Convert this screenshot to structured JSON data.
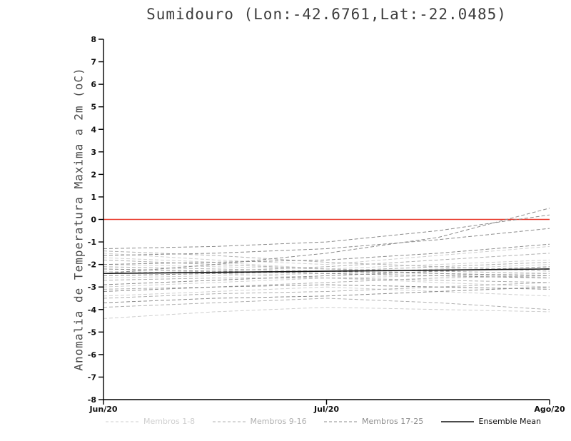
{
  "chart_data": {
    "type": "line",
    "title": "Sumidouro (Lon:-42.6761,Lat:-22.0485)",
    "ylabel": "Anomalia de Temperatura Maxima a 2m (oC)",
    "xlim": [
      0,
      2
    ],
    "ylim": [
      -8,
      8
    ],
    "yticks": [
      -8,
      -7,
      -6,
      -5,
      -4,
      -3,
      -2,
      -1,
      0,
      1,
      2,
      3,
      4,
      5,
      6,
      7,
      8
    ],
    "x_ticks": [
      {
        "pos": 0,
        "label": "Jun/20"
      },
      {
        "pos": 1,
        "label": "Jul/20"
      },
      {
        "pos": 2,
        "label": "Ago/20"
      }
    ],
    "x": [
      0,
      0.5,
      1,
      1.5,
      2
    ],
    "zero_line": {
      "value": 0,
      "color": "#e8392b"
    },
    "grid": false,
    "legend_position": "bottom",
    "groups": [
      {
        "name": "Membros 1-8",
        "color": "#cfcfcf",
        "dashed": true,
        "members": [
          [
            -1.5,
            -1.8,
            -2.0,
            -1.6,
            -1.2
          ],
          [
            -1.7,
            -1.9,
            -2.2,
            -2.4,
            -2.6
          ],
          [
            -2.0,
            -2.1,
            -2.2,
            -2.0,
            -1.8
          ],
          [
            -2.3,
            -2.4,
            -2.6,
            -2.8,
            -3.0
          ],
          [
            -2.6,
            -2.5,
            -2.4,
            -2.2,
            -2.0
          ],
          [
            -3.0,
            -2.8,
            -2.6,
            -2.5,
            -2.4
          ],
          [
            -3.4,
            -3.2,
            -3.0,
            -3.2,
            -3.4
          ],
          [
            -4.4,
            -4.1,
            -3.9,
            -4.0,
            -4.1
          ]
        ]
      },
      {
        "name": "Membros 9-16",
        "color": "#b0b0b0",
        "dashed": true,
        "members": [
          [
            -1.4,
            -1.6,
            -1.9,
            -2.1,
            -2.3
          ],
          [
            -1.8,
            -2.0,
            -2.2,
            -2.3,
            -2.4
          ],
          [
            -2.1,
            -2.2,
            -2.3,
            -2.1,
            -1.9
          ],
          [
            -2.4,
            -2.3,
            -2.1,
            -1.8,
            -1.5
          ],
          [
            -2.7,
            -2.6,
            -2.6,
            -2.7,
            -2.8
          ],
          [
            -3.1,
            -3.0,
            -2.8,
            -2.6,
            -2.5
          ],
          [
            -3.5,
            -3.3,
            -3.2,
            -3.0,
            -2.8
          ],
          [
            -3.9,
            -3.7,
            -3.5,
            -3.7,
            -4.0
          ]
        ]
      },
      {
        "name": "Membros 17-25",
        "color": "#8c8c8c",
        "dashed": true,
        "members": [
          [
            -1.3,
            -1.2,
            -1.0,
            -0.5,
            0.2
          ],
          [
            -1.6,
            -1.5,
            -1.3,
            -0.9,
            -0.4
          ],
          [
            -2.0,
            -1.9,
            -1.8,
            -1.5,
            -1.1
          ],
          [
            -2.2,
            -2.3,
            -2.4,
            -2.5,
            -2.6
          ],
          [
            -2.5,
            -2.4,
            -2.3,
            -2.4,
            -2.5
          ],
          [
            -2.9,
            -2.7,
            -2.5,
            -2.3,
            -2.1
          ],
          [
            -3.2,
            -3.0,
            -2.9,
            -3.0,
            -3.1
          ],
          [
            -3.7,
            -3.5,
            -3.4,
            -3.2,
            -3.0
          ],
          [
            -2.4,
            -2.0,
            -1.5,
            -0.8,
            0.5
          ]
        ]
      }
    ],
    "ensemble_mean": {
      "label": "Ensemble Mean",
      "color": "#111111",
      "values": [
        -2.4,
        -2.35,
        -2.3,
        -2.25,
        -2.2
      ]
    },
    "legend": [
      {
        "label": "Membros 1-8",
        "color": "#cfcfcf",
        "dashed": true
      },
      {
        "label": "Membros 9-16",
        "color": "#b0b0b0",
        "dashed": true
      },
      {
        "label": "Membros 17-25",
        "color": "#8c8c8c",
        "dashed": true
      },
      {
        "label": "Ensemble Mean",
        "color": "#111111",
        "dashed": false
      }
    ]
  }
}
